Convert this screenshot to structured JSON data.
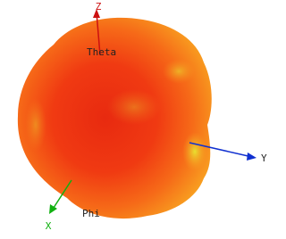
{
  "axes": {
    "theta": "Theta",
    "z": "Z",
    "y": "Y",
    "phi": "Phi",
    "x": "X"
  }
}
